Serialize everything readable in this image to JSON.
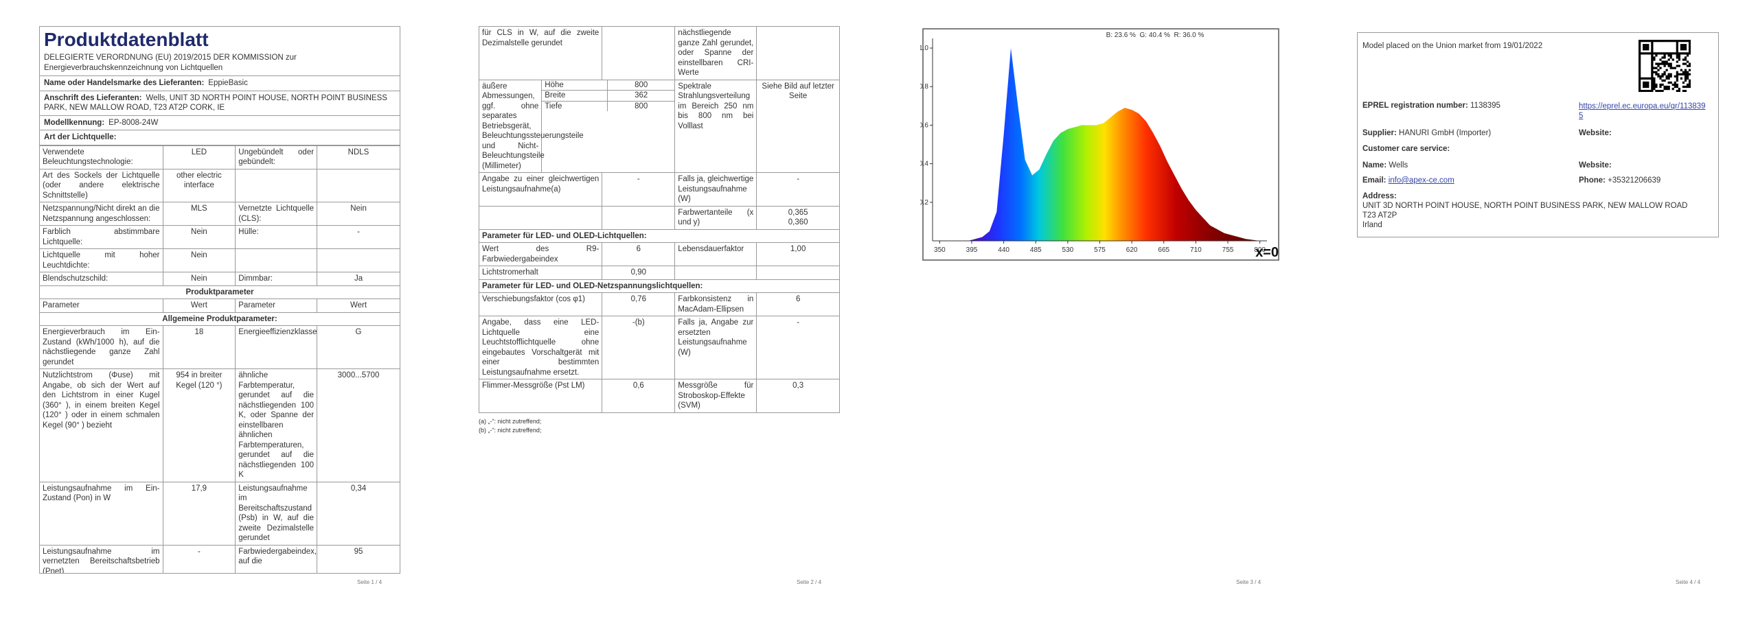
{
  "page1": {
    "title": "Produktdatenblatt",
    "subtitle": "DELEGIERTE VERORDNUNG (EU) 2019/2015 DER KOMMISSION zur Energieverbrauchskennzeichnung von Lichtquellen",
    "supplier": [
      {
        "label": "Name oder Handelsmarke des Lieferanten:",
        "value": "EppieBasic"
      },
      {
        "label": "Anschrift des Lieferanten:",
        "value": "Wells, UNIT 3D NORTH POINT HOUSE, NORTH POINT BUSINESS PARK, NEW MALLOW ROAD, T23 AT2P CORK, IE"
      },
      {
        "label": "Modellkennung:",
        "value": "EP-8008-24W"
      },
      {
        "label": "Art der Lichtquelle:"
      }
    ],
    "table": [
      [
        "Verwendete Beleuchtungstechnologie:",
        "LED",
        "Ungebündelt oder gebündelt:",
        "NDLS"
      ],
      [
        "Art des Sockels der Lichtquelle (oder andere elektrische Schnittstelle)",
        "other electric interface",
        null,
        null
      ],
      [
        "Netzspannung/Nicht direkt an die Netzspannung angeschlossen:",
        "MLS",
        "Vernetzte Lichtquelle (CLS):",
        "Nein"
      ],
      [
        "Farblich abstimmbare Lichtquelle:",
        "Nein",
        "Hülle:",
        "-"
      ],
      [
        "Lichtquelle mit hoher Leuchtdichte:",
        "Nein",
        null,
        null
      ],
      [
        "Blendschutzschild:",
        "Nein",
        "Dimmbar:",
        "Ja"
      ],
      {
        "heading": "Produktparameter"
      },
      [
        "Parameter",
        "Wert",
        "Parameter",
        "Wert"
      ],
      {
        "heading": "Allgemeine Produktparameter:"
      },
      [
        "Energieverbrauch im Ein-Zustand (kWh/1000 h), auf die nächstliegende ganze Zahl gerundet",
        "18",
        "Energieeffizienzklasse",
        "G"
      ],
      [
        "Nutzlichtstrom (Φuse) mit Angabe, ob sich der Wert auf den Lichtstrom in einer Kugel (360° ), in einem breiten Kegel (120° ) oder in einem schmalen Kegel (90° ) bezieht",
        "954 in breiter Kegel (120 °)",
        "ähnliche Farbtemperatur, gerundet auf die nächstliegenden 100 K, oder Spanne der einstellbaren ähnlichen Farbtemperaturen, gerundet auf die nächstliegenden 100 K",
        "3000...5700"
      ],
      [
        "Leistungsaufnahme im Ein-Zustand (Pon) in W",
        "17,9",
        "Leistungsaufnahme im Bereitschaftszustand (Psb) in W, auf die zweite Dezimalstelle gerundet",
        "0,34"
      ],
      [
        "Leistungsaufnahme im vernetzten Bereitschaftsbetrieb (Pnet)",
        "-",
        "Farbwiedergabeindex, auf die",
        "95"
      ]
    ],
    "footer": "Seite 1 / 4"
  },
  "page2": {
    "table": [
      [
        "für CLS in W, auf die zweite Dezimalstelle gerundet",
        null,
        "nächstliegende ganze Zahl gerundet, oder Spanne der einstellbaren CRI-Werte",
        null
      ],
      [
        "äußere Abmessungen, ggf. ohne separates Betriebsgerät, Beleuchtungssteuerungsteile und Nicht-Beleuchtungsteile (Millimeter)",
        [
          [
            "Höhe",
            "800"
          ],
          [
            "Breite",
            "362"
          ],
          [
            "Tiefe",
            "800"
          ]
        ],
        "Spektrale Strahlungsverteilung im Bereich 250 nm bis 800 nm bei Volllast",
        "Siehe Bild auf letzter Seite"
      ],
      [
        "Angabe zu einer gleichwertigen Leistungsaufnahme(a)",
        "-",
        "Falls ja, gleichwertige Leistungsaufnahme (W)",
        "-"
      ],
      [
        null,
        null,
        "Farbwertanteile (x und y)",
        "0,365\n0,360"
      ],
      {
        "section": "Parameter für LED- und OLED-Lichtquellen:"
      },
      [
        "Wert des R9-Farbwiedergabeindex",
        "6",
        "Lebensdauerfaktor",
        "1,00"
      ],
      [
        "Lichtstromerhalt",
        "0,90",
        null,
        null
      ],
      {
        "section": "Parameter für LED- und OLED-Netzspannungslichtquellen:"
      },
      [
        "Verschiebungsfaktor (cos φ1)",
        "0,76",
        "Farbkonsistenz in MacAdam-Ellipsen",
        "6"
      ],
      [
        "Angabe, dass eine LED-Lichtquelle eine Leuchtstofflichtquelle ohne eingebautes Vorschaltgerät mit einer bestimmten Leistungsaufnahme ersetzt.",
        "-(b)",
        "Falls ja, Angabe zur ersetzten Leistungsaufnahme (W)",
        "-"
      ],
      [
        "Flimmer-Messgröße (Pst LM)",
        "0,6",
        "Messgröße für Stroboskop-Effekte (SVM)",
        "0,3"
      ]
    ],
    "notes": [
      "(a) „-“: nicht zutreffend;",
      "(b) „-“: nicht zutreffend;"
    ],
    "footer": "Seite 2 / 4"
  },
  "page3": {
    "chart_data": {
      "type": "area",
      "annotations": [
        "B: 23.6 %  G: 40.4 %  R: 36.0 %",
        "x=0"
      ],
      "x": [
        380,
        390,
        400,
        410,
        420,
        430,
        440,
        450,
        460,
        470,
        480,
        490,
        500,
        510,
        520,
        530,
        540,
        550,
        560,
        570,
        580,
        590,
        600,
        610,
        620,
        630,
        640,
        650,
        660,
        670,
        680,
        690,
        700,
        710,
        720,
        730,
        740,
        750,
        760,
        770,
        780,
        790,
        800
      ],
      "values": [
        0,
        0,
        0.01,
        0.02,
        0.05,
        0.15,
        0.55,
        1.0,
        0.7,
        0.42,
        0.34,
        0.37,
        0.45,
        0.52,
        0.56,
        0.58,
        0.59,
        0.6,
        0.6,
        0.6,
        0.61,
        0.64,
        0.67,
        0.69,
        0.68,
        0.66,
        0.62,
        0.56,
        0.49,
        0.41,
        0.34,
        0.27,
        0.21,
        0.16,
        0.12,
        0.08,
        0.06,
        0.04,
        0.03,
        0.02,
        0.01,
        0.005,
        0
      ],
      "xlim": [
        340,
        810
      ],
      "ylim": [
        0,
        1.05
      ],
      "xticks": [
        350,
        395,
        440,
        485,
        530,
        575,
        620,
        665,
        710,
        755,
        800
      ],
      "yticks": [
        0.2,
        0.4,
        0.6,
        0.8,
        {
          "value": 1,
          "label": "1.0"
        }
      ]
    },
    "footer": "Seite 3 / 4"
  },
  "page4": {
    "market": "Model placed on the Union market from 19/01/2022",
    "eprel": {
      "label": "EPREL registration number:",
      "value": "1138395",
      "link": "https://eprel.ec.europa.eu/qr/1138395"
    },
    "supplier": {
      "label": "Supplier:",
      "value": "HANURI GmbH (Importer)"
    },
    "supplier_website": {
      "label": "Website:"
    },
    "customer_care": "Customer care service:",
    "name": {
      "label": "Name:",
      "value": "Wells"
    },
    "care_website": {
      "label": "Website:"
    },
    "email": {
      "label": "Email:",
      "value": "info@apex-ce.com"
    },
    "phone": {
      "label": "Phone:",
      "value": "+35321206639"
    },
    "address": {
      "label": "Address:",
      "lines": [
        "UNIT 3D NORTH POINT HOUSE, NORTH POINT BUSINESS PARK, NEW MALLOW ROAD",
        "T23 AT2P",
        "Irland"
      ]
    },
    "footer": "Seite 4 / 4"
  }
}
